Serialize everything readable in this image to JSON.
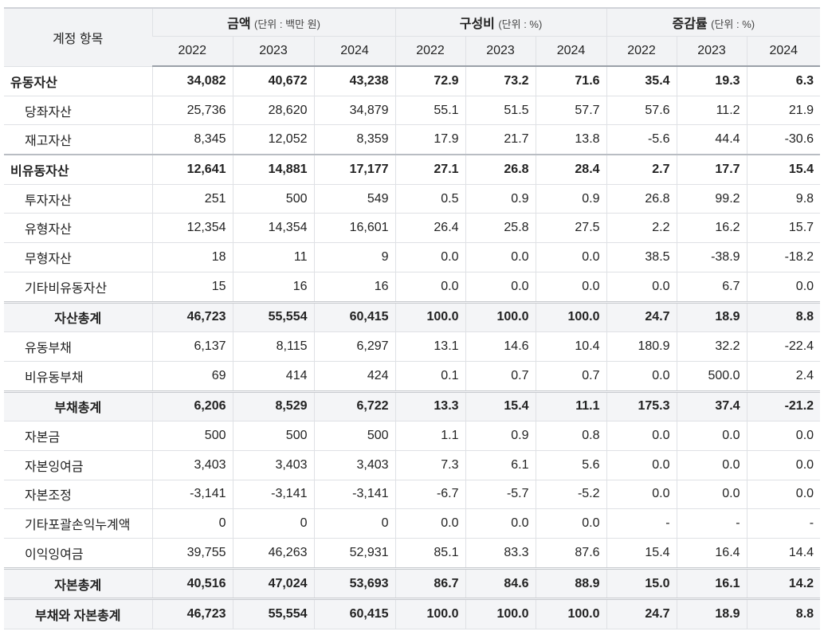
{
  "table": {
    "header": {
      "account": "계정 항목",
      "groups": [
        {
          "title": "금액",
          "unit": "(단위 : 백만 원)",
          "years": [
            "2022",
            "2023",
            "2024"
          ]
        },
        {
          "title": "구성비",
          "unit": "(단위 : %)",
          "years": [
            "2022",
            "2023",
            "2024"
          ]
        },
        {
          "title": "증감률",
          "unit": "(단위 : %)",
          "years": [
            "2022",
            "2023",
            "2024"
          ]
        }
      ]
    },
    "rows": [
      {
        "style": "section",
        "label": "유동자산",
        "cells": [
          "34,082",
          "40,672",
          "43,238",
          "72.9",
          "73.2",
          "71.6",
          "35.4",
          "19.3",
          "6.3"
        ]
      },
      {
        "style": "item",
        "label": "당좌자산",
        "cells": [
          "25,736",
          "28,620",
          "34,879",
          "55.1",
          "51.5",
          "57.7",
          "57.6",
          "11.2",
          "21.9"
        ]
      },
      {
        "style": "item",
        "label": "재고자산",
        "cells": [
          "8,345",
          "12,052",
          "8,359",
          "17.9",
          "21.7",
          "13.8",
          "-5.6",
          "44.4",
          "-30.6"
        ]
      },
      {
        "style": "section",
        "label": "비유동자산",
        "cells": [
          "12,641",
          "14,881",
          "17,177",
          "27.1",
          "26.8",
          "28.4",
          "2.7",
          "17.7",
          "15.4"
        ]
      },
      {
        "style": "item",
        "label": "투자자산",
        "cells": [
          "251",
          "500",
          "549",
          "0.5",
          "0.9",
          "0.9",
          "26.8",
          "99.2",
          "9.8"
        ]
      },
      {
        "style": "item",
        "label": "유형자산",
        "cells": [
          "12,354",
          "14,354",
          "16,601",
          "26.4",
          "25.8",
          "27.5",
          "2.2",
          "16.2",
          "15.7"
        ]
      },
      {
        "style": "item",
        "label": "무형자산",
        "cells": [
          "18",
          "11",
          "9",
          "0.0",
          "0.0",
          "0.0",
          "38.5",
          "-38.9",
          "-18.2"
        ]
      },
      {
        "style": "item",
        "label": "기타비유동자산",
        "cells": [
          "15",
          "16",
          "16",
          "0.0",
          "0.0",
          "0.0",
          "0.0",
          "6.7",
          "0.0"
        ]
      },
      {
        "style": "total",
        "label": "자산총계",
        "cells": [
          "46,723",
          "55,554",
          "60,415",
          "100.0",
          "100.0",
          "100.0",
          "24.7",
          "18.9",
          "8.8"
        ]
      },
      {
        "style": "item",
        "label": "유동부채",
        "cells": [
          "6,137",
          "8,115",
          "6,297",
          "13.1",
          "14.6",
          "10.4",
          "180.9",
          "32.2",
          "-22.4"
        ]
      },
      {
        "style": "item",
        "label": "비유동부채",
        "cells": [
          "69",
          "414",
          "424",
          "0.1",
          "0.7",
          "0.7",
          "0.0",
          "500.0",
          "2.4"
        ]
      },
      {
        "style": "total",
        "label": "부채총계",
        "cells": [
          "6,206",
          "8,529",
          "6,722",
          "13.3",
          "15.4",
          "11.1",
          "175.3",
          "37.4",
          "-21.2"
        ]
      },
      {
        "style": "item",
        "label": "자본금",
        "cells": [
          "500",
          "500",
          "500",
          "1.1",
          "0.9",
          "0.8",
          "0.0",
          "0.0",
          "0.0"
        ]
      },
      {
        "style": "item",
        "label": "자본잉여금",
        "cells": [
          "3,403",
          "3,403",
          "3,403",
          "7.3",
          "6.1",
          "5.6",
          "0.0",
          "0.0",
          "0.0"
        ]
      },
      {
        "style": "item",
        "label": "자본조정",
        "cells": [
          "-3,141",
          "-3,141",
          "-3,141",
          "-6.7",
          "-5.7",
          "-5.2",
          "0.0",
          "0.0",
          "0.0"
        ]
      },
      {
        "style": "item",
        "label": "기타포괄손익누계액",
        "cells": [
          "0",
          "0",
          "0",
          "0.0",
          "0.0",
          "0.0",
          "-",
          "-",
          "-"
        ]
      },
      {
        "style": "item",
        "label": "이익잉여금",
        "cells": [
          "39,755",
          "46,263",
          "52,931",
          "85.1",
          "83.3",
          "87.6",
          "15.4",
          "16.4",
          "14.4"
        ]
      },
      {
        "style": "total",
        "label": "자본총계",
        "cells": [
          "40,516",
          "47,024",
          "53,693",
          "86.7",
          "84.6",
          "88.9",
          "15.0",
          "16.1",
          "14.2"
        ]
      },
      {
        "style": "total",
        "label": "부채와 자본총계",
        "cells": [
          "46,723",
          "55,554",
          "60,415",
          "100.0",
          "100.0",
          "100.0",
          "24.7",
          "18.9",
          "8.8"
        ]
      }
    ]
  }
}
